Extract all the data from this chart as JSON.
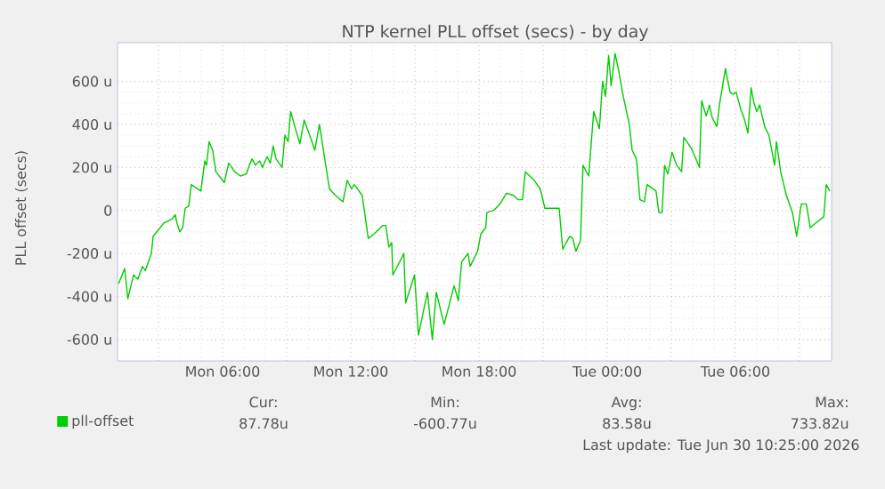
{
  "chart_data": {
    "type": "line",
    "title": "NTP kernel PLL offset (secs) - by day",
    "ylabel": "PLL offset (secs)",
    "x": [
      "2026-06-29T01:08",
      "2026-06-29T01:25",
      "2026-06-29T01:34",
      "2026-06-29T01:50",
      "2026-06-29T02:02",
      "2026-06-29T02:15",
      "2026-06-29T02:23",
      "2026-06-29T02:40",
      "2026-06-29T02:45",
      "2026-06-29T03:05",
      "2026-06-29T03:14",
      "2026-06-29T03:38",
      "2026-06-29T03:47",
      "2026-06-29T03:52",
      "2026-06-29T04:00",
      "2026-06-29T04:08",
      "2026-06-29T04:15",
      "2026-06-29T04:25",
      "2026-06-29T04:32",
      "2026-06-29T04:59",
      "2026-06-29T05:10",
      "2026-06-29T05:15",
      "2026-06-29T05:22",
      "2026-06-29T05:32",
      "2026-06-29T05:41",
      "2026-06-29T06:05",
      "2026-06-29T06:17",
      "2026-06-29T06:34",
      "2026-06-29T06:50",
      "2026-06-29T07:07",
      "2026-06-29T07:15",
      "2026-06-29T07:23",
      "2026-06-29T07:32",
      "2026-06-29T07:44",
      "2026-06-29T07:52",
      "2026-06-29T08:05",
      "2026-06-29T08:14",
      "2026-06-29T08:22",
      "2026-06-29T08:30",
      "2026-06-29T08:47",
      "2026-06-29T08:55",
      "2026-06-29T09:04",
      "2026-06-29T09:11",
      "2026-06-29T09:23",
      "2026-06-29T09:37",
      "2026-06-29T09:49",
      "2026-06-29T10:02",
      "2026-06-29T10:19",
      "2026-06-29T10:32",
      "2026-06-29T10:44",
      "2026-06-29T11:00",
      "2026-06-29T11:17",
      "2026-06-29T11:38",
      "2026-06-29T11:50",
      "2026-06-29T12:02",
      "2026-06-29T12:10",
      "2026-06-29T12:32",
      "2026-06-29T12:49",
      "2026-06-29T13:05",
      "2026-06-29T13:30",
      "2026-06-29T13:38",
      "2026-06-29T13:47",
      "2026-06-29T13:55",
      "2026-06-29T13:58",
      "2026-06-29T14:20",
      "2026-06-29T14:29",
      "2026-06-29T14:34",
      "2026-06-29T14:59",
      "2026-06-29T15:10",
      "2026-06-29T15:35",
      "2026-06-29T15:49",
      "2026-06-29T16:00",
      "2026-06-29T16:22",
      "2026-06-29T16:50",
      "2026-06-29T17:02",
      "2026-06-29T17:11",
      "2026-06-29T17:29",
      "2026-06-29T17:35",
      "2026-06-29T17:56",
      "2026-06-29T18:05",
      "2026-06-29T18:19",
      "2026-06-29T18:22",
      "2026-06-29T18:41",
      "2026-06-29T18:59",
      "2026-06-29T19:17",
      "2026-06-29T19:37",
      "2026-06-29T19:49",
      "2026-06-29T20:02",
      "2026-06-29T20:10",
      "2026-06-29T20:35",
      "2026-06-29T20:52",
      "2026-06-29T21:05",
      "2026-06-29T21:34",
      "2026-06-29T21:45",
      "2026-06-29T21:55",
      "2026-06-29T22:15",
      "2026-06-29T22:23",
      "2026-06-29T22:32",
      "2026-06-29T22:45",
      "2026-06-29T22:52",
      "2026-06-29T23:08",
      "2026-06-29T23:22",
      "2026-06-29T23:38",
      "2026-06-29T23:47",
      "2026-06-29T23:55",
      "2026-06-30T00:04",
      "2026-06-30T00:11",
      "2026-06-30T00:22",
      "2026-06-30T00:32",
      "2026-06-30T00:45",
      "2026-06-30T01:02",
      "2026-06-30T01:10",
      "2026-06-30T01:22",
      "2026-06-30T01:32",
      "2026-06-30T01:44",
      "2026-06-30T01:52",
      "2026-06-30T02:17",
      "2026-06-30T02:25",
      "2026-06-30T02:34",
      "2026-06-30T02:41",
      "2026-06-30T02:50",
      "2026-06-30T03:02",
      "2026-06-30T03:15",
      "2026-06-30T03:29",
      "2026-06-30T03:35",
      "2026-06-30T03:56",
      "2026-06-30T04:19",
      "2026-06-30T04:25",
      "2026-06-30T04:38",
      "2026-06-30T04:47",
      "2026-06-30T04:55",
      "2026-06-30T05:08",
      "2026-06-30T05:15",
      "2026-06-30T05:32",
      "2026-06-30T05:45",
      "2026-06-30T05:53",
      "2026-06-30T06:02",
      "2026-06-30T06:15",
      "2026-06-30T06:26",
      "2026-06-30T06:35",
      "2026-06-30T06:44",
      "2026-06-30T06:52",
      "2026-06-30T07:00",
      "2026-06-30T07:08",
      "2026-06-30T07:22",
      "2026-06-30T07:34",
      "2026-06-30T07:50",
      "2026-06-30T07:55",
      "2026-06-30T08:07",
      "2026-06-30T08:23",
      "2026-06-30T08:40",
      "2026-06-30T08:52",
      "2026-06-30T09:05",
      "2026-06-30T09:19",
      "2026-06-30T09:30",
      "2026-06-30T09:52",
      "2026-06-30T10:08",
      "2026-06-30T10:15",
      "2026-06-30T10:25"
    ],
    "series": [
      {
        "name": "pll-offset",
        "color": "#00cc00",
        "values": [
          -340,
          -270,
          -410,
          -300,
          -320,
          -260,
          -280,
          -200,
          -120,
          -80,
          -60,
          -40,
          -20,
          -60,
          -100,
          -80,
          10,
          20,
          120,
          90,
          230,
          210,
          320,
          280,
          180,
          130,
          220,
          180,
          160,
          170,
          210,
          240,
          210,
          230,
          200,
          250,
          220,
          300,
          240,
          200,
          350,
          320,
          460,
          390,
          310,
          420,
          360,
          280,
          400,
          270,
          100,
          70,
          40,
          140,
          100,
          120,
          70,
          -130,
          -110,
          -70,
          -70,
          -170,
          -150,
          -300,
          -230,
          -200,
          -430,
          -300,
          -580,
          -380,
          -600,
          -380,
          -530,
          -350,
          -420,
          -240,
          -200,
          -260,
          -190,
          -110,
          -80,
          -10,
          0,
          30,
          80,
          70,
          50,
          50,
          180,
          140,
          100,
          10,
          10,
          10,
          -180,
          -120,
          -130,
          -190,
          -140,
          210,
          160,
          460,
          380,
          600,
          530,
          720,
          580,
          730,
          650,
          530,
          400,
          280,
          240,
          50,
          40,
          120,
          90,
          -10,
          -10,
          210,
          170,
          270,
          210,
          180,
          340,
          290,
          200,
          510,
          440,
          490,
          430,
          390,
          490,
          660,
          550,
          540,
          550,
          470,
          420,
          360,
          570,
          500,
          460,
          490,
          390,
          350,
          210,
          320,
          180,
          70,
          -10,
          -120,
          30,
          30,
          -80,
          -50,
          -30,
          120,
          90
        ]
      }
    ],
    "xlim": [
      "2026-06-29T01:05",
      "2026-06-30T10:30"
    ],
    "ylim": [
      -700,
      780
    ],
    "xticks": [
      {
        "value": "2026-06-29T03:00",
        "label": null
      },
      {
        "value": "2026-06-29T06:00",
        "label": "Mon 06:00"
      },
      {
        "value": "2026-06-29T09:00",
        "label": null
      },
      {
        "value": "2026-06-29T12:00",
        "label": "Mon 12:00"
      },
      {
        "value": "2026-06-29T15:00",
        "label": null
      },
      {
        "value": "2026-06-29T18:00",
        "label": "Mon 18:00"
      },
      {
        "value": "2026-06-29T21:00",
        "label": null
      },
      {
        "value": "2026-06-30T00:00",
        "label": "Tue 00:00"
      },
      {
        "value": "2026-06-30T03:00",
        "label": null
      },
      {
        "value": "2026-06-30T06:00",
        "label": "Tue 06:00"
      },
      {
        "value": "2026-06-30T09:00",
        "label": null
      }
    ],
    "yticks": [
      {
        "value": -600,
        "label": "-600 u"
      },
      {
        "value": -400,
        "label": "-400 u"
      },
      {
        "value": -200,
        "label": "-200 u"
      },
      0,
      {
        "value": 200,
        "label": "200 u"
      },
      {
        "value": 400,
        "label": "400 u"
      },
      {
        "value": 600,
        "label": "600 u"
      }
    ],
    "grid": true,
    "legend": "bottom left",
    "line_style": "solid",
    "marker": "none",
    "annotations": [
      "Cur:",
      "87.78u",
      "Min:",
      "-600.77u",
      "Avg:",
      "83.58u",
      "Max:",
      "733.82u",
      "Last update: Tue Jun 30 10:25:00 2026"
    ]
  }
}
